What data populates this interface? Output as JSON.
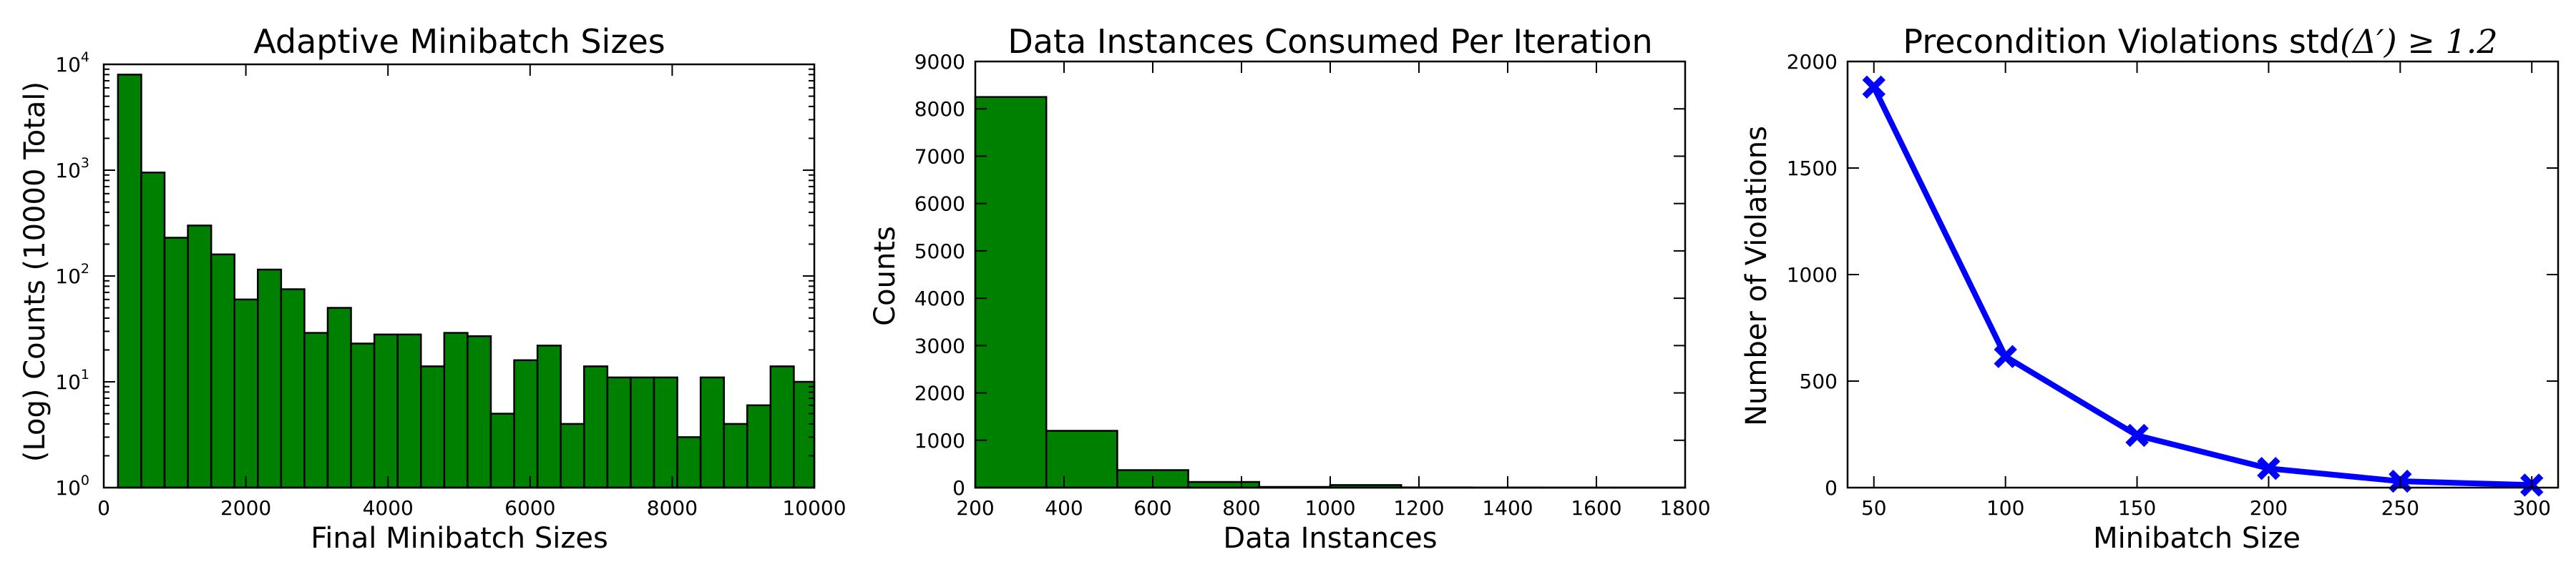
{
  "colors": {
    "bar_fill": "#008000",
    "bar_edge": "#000000",
    "line": "#0000ff"
  },
  "chart_data": [
    {
      "type": "bar",
      "subtype": "histogram",
      "title": "Adaptive Minibatch Sizes",
      "xlabel": "Final Minibatch Sizes",
      "ylabel": "(Log) Counts (10000 Total)",
      "yscale": "log",
      "xlim": [
        0,
        10000
      ],
      "ylim": [
        1,
        10000
      ],
      "grid": false,
      "xticks": [
        "0",
        "2000",
        "4000",
        "6000",
        "8000",
        "10000"
      ],
      "ytick_values": [
        1,
        10,
        100,
        1000,
        10000
      ],
      "ytick_base": "10",
      "ytick_exponents": [
        "0",
        "1",
        "2",
        "3",
        "4"
      ],
      "bin_start": 200,
      "bin_width": 328,
      "values": [
        8000,
        950,
        230,
        300,
        160,
        60,
        115,
        75,
        29,
        50,
        23,
        28,
        28,
        14,
        29,
        27,
        5,
        16,
        22,
        4,
        14,
        11,
        11,
        11,
        3,
        11,
        4,
        6,
        14,
        10
      ]
    },
    {
      "type": "bar",
      "subtype": "histogram",
      "title": "Data Instances Consumed Per Iteration",
      "xlabel": "Data Instances",
      "ylabel": "Counts",
      "xlim": [
        200,
        1800
      ],
      "ylim": [
        0,
        9000
      ],
      "grid": false,
      "xticks": [
        "200",
        "400",
        "600",
        "800",
        "1000",
        "1200",
        "1400",
        "1600",
        "1800"
      ],
      "yticks": [
        "0",
        "1000",
        "2000",
        "3000",
        "4000",
        "5000",
        "6000",
        "7000",
        "8000",
        "9000"
      ],
      "bin_start": 200,
      "bin_width": 160,
      "values": [
        8250,
        1200,
        370,
        120,
        15,
        55,
        5,
        3,
        2,
        2
      ]
    },
    {
      "type": "line",
      "title": "Precondition Violations std",
      "title_math": "(Δ′) ≥ 1.2",
      "xlabel": "Minibatch Size",
      "ylabel": "Number of Violations",
      "xlim": [
        40,
        310
      ],
      "ylim": [
        0,
        2000
      ],
      "grid": false,
      "marker": "x",
      "xticks": [
        "50",
        "100",
        "150",
        "200",
        "250",
        "300"
      ],
      "yticks": [
        "0",
        "500",
        "1000",
        "1500",
        "2000"
      ],
      "x": [
        50,
        100,
        150,
        200,
        250,
        300
      ],
      "series": [
        {
          "values": [
            1880,
            615,
            245,
            90,
            30,
            12
          ]
        }
      ]
    }
  ]
}
